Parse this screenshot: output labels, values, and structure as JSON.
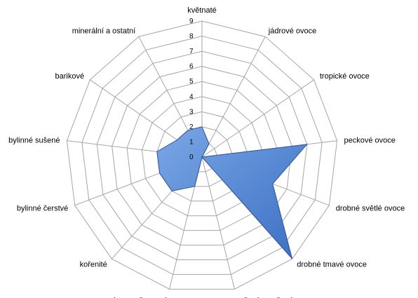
{
  "chart_data": {
    "type": "radar",
    "title": "",
    "categories": [
      "květnaté",
      "jádrové ovoce",
      "tropické ovoce",
      "peckové ovoce",
      "drobné světlé ovoce",
      "drobné tmavé ovoce",
      "vařené a sušené ovoce",
      "karamelizované",
      "kořenité",
      "bylinné čerstvé",
      "bylinné sušené",
      "barikové",
      "minerální a ostatní"
    ],
    "series": [
      {
        "values": [
          2,
          1,
          0,
          7,
          5,
          9,
          0,
          2,
          3,
          3,
          3,
          2,
          2
        ]
      }
    ],
    "rlim": [
      0,
      9
    ],
    "ticks": [
      0,
      1,
      2,
      3,
      4,
      5,
      6,
      7,
      8,
      9
    ],
    "grid": true,
    "legend": "none",
    "colors": {
      "fill": "#4f81bd",
      "fill_light": "#6fa0e0",
      "stroke": "#2f5597",
      "grid": "#a6a6a6"
    }
  }
}
